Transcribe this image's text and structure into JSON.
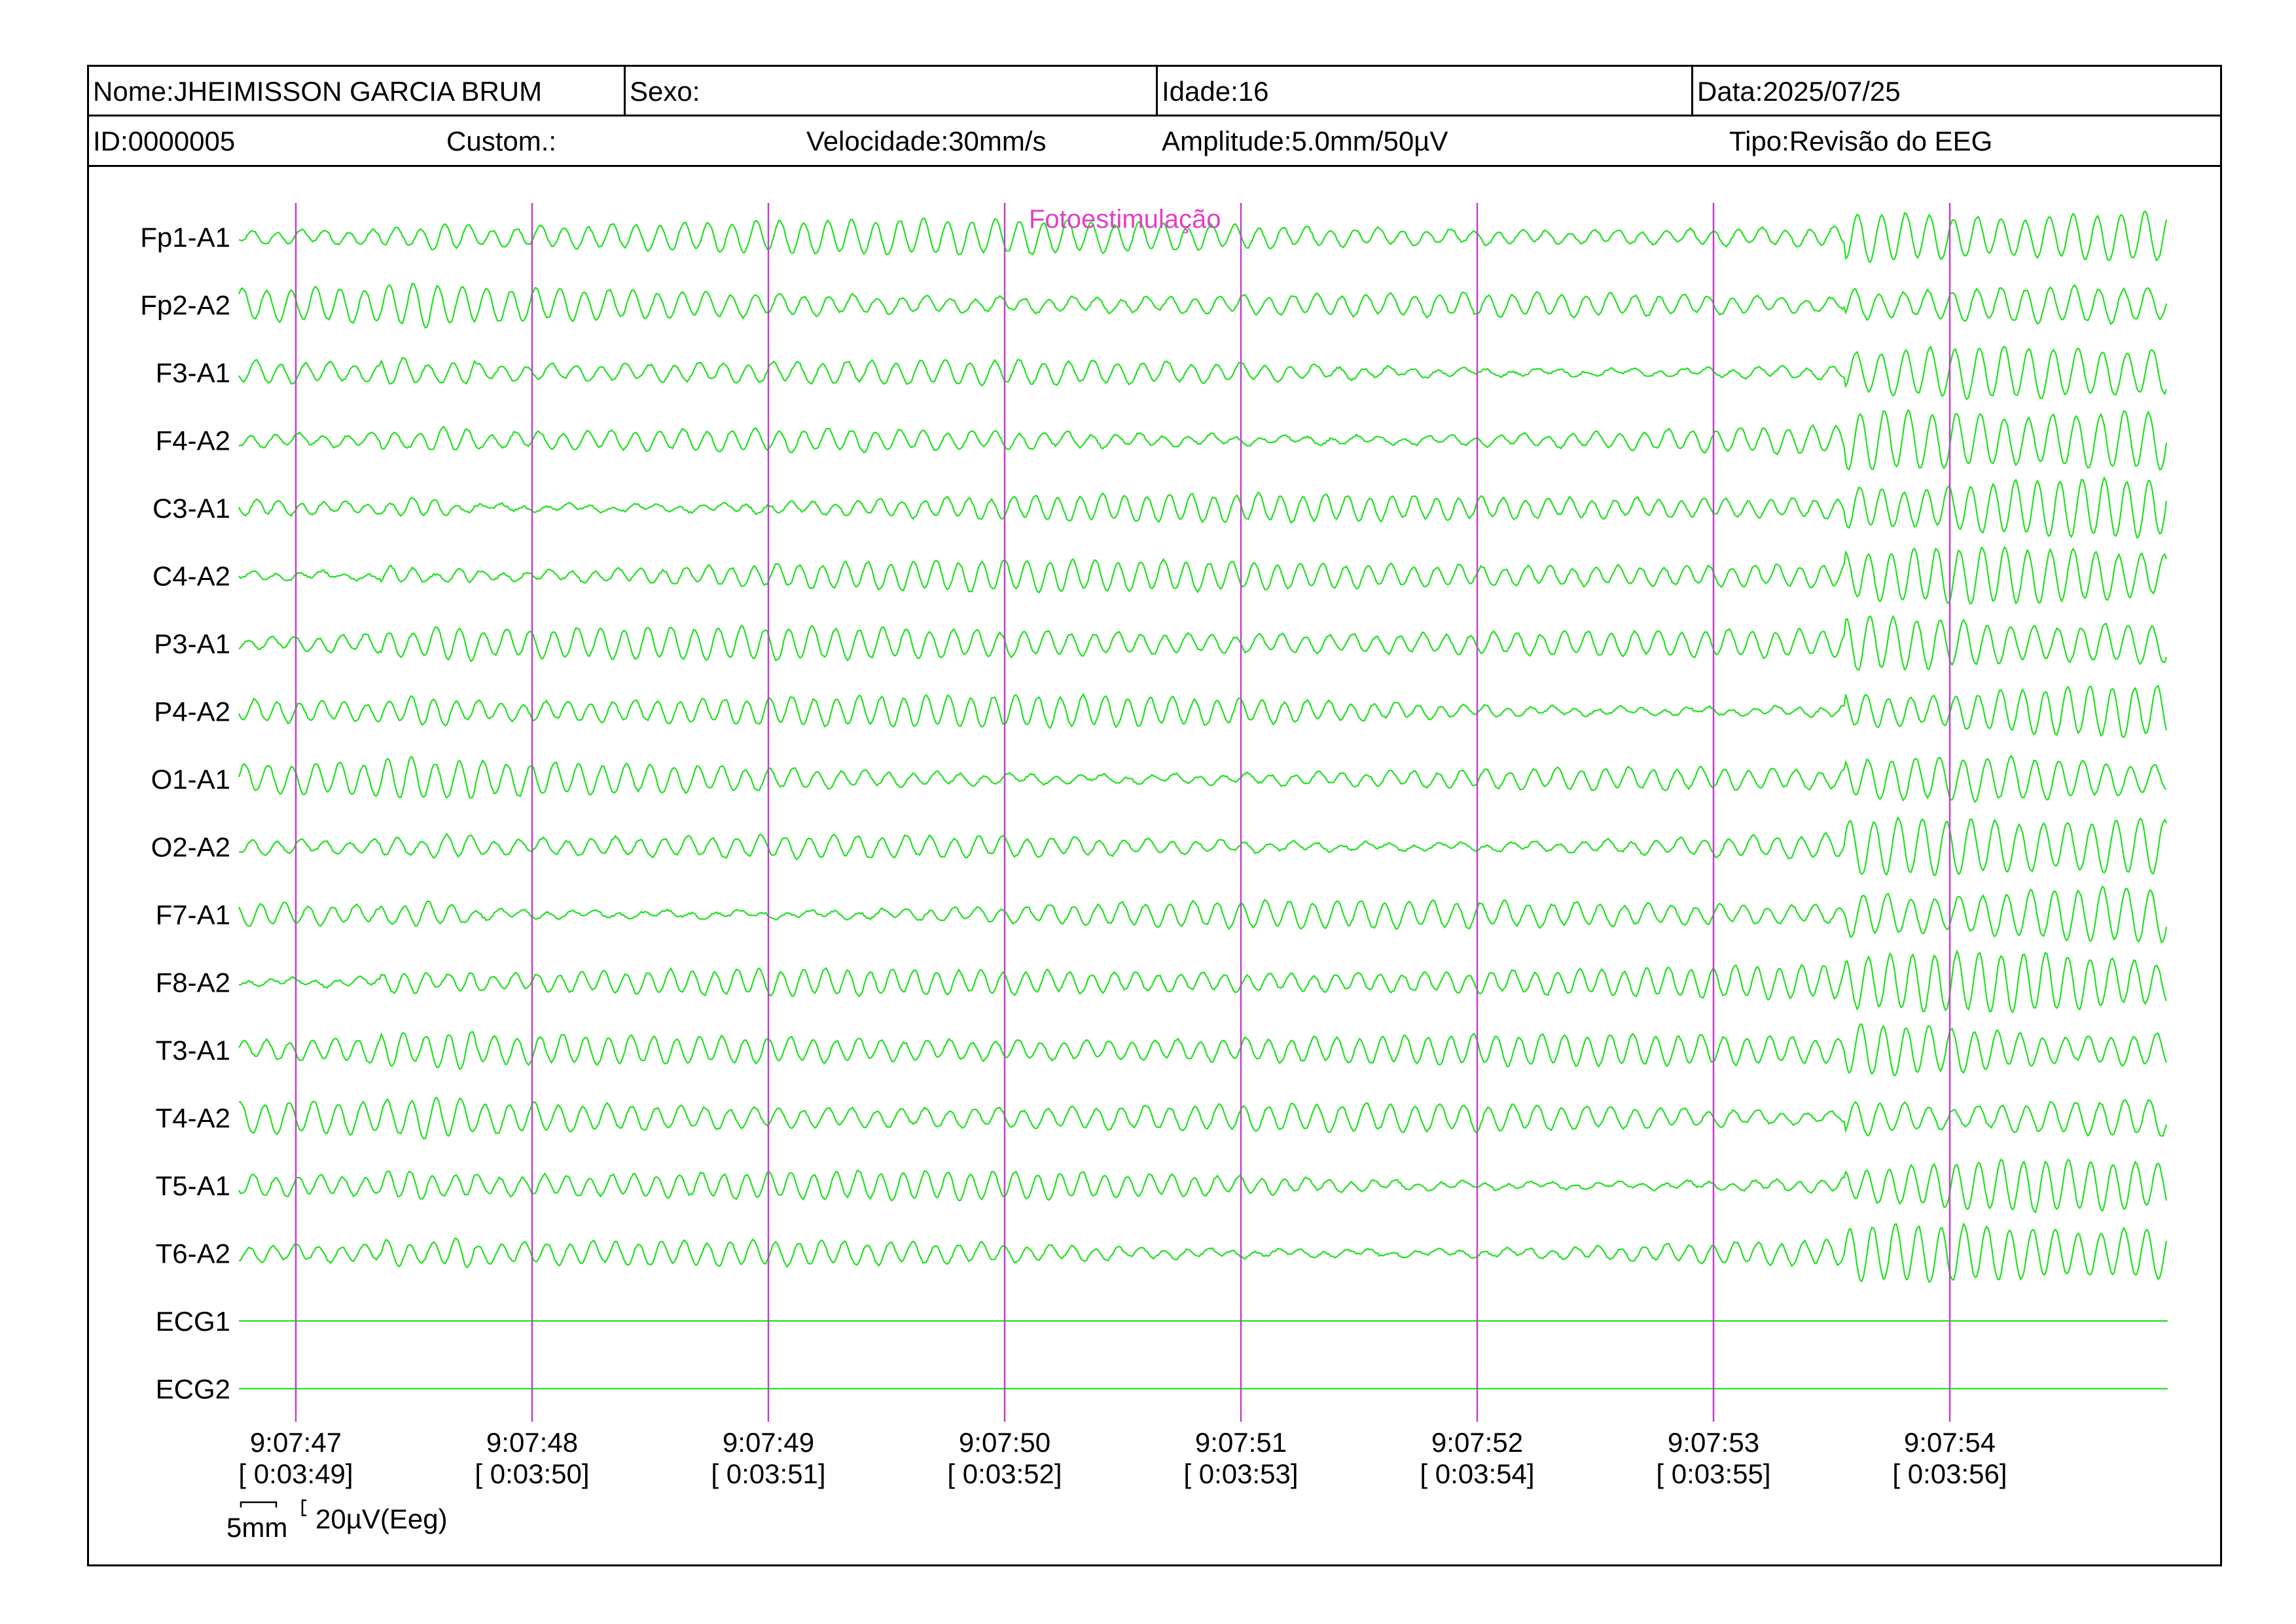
{
  "header": {
    "nome": "Nome:JHEIMISSON GARCIA BRUM",
    "sexo": "Sexo:",
    "idade": "Idade:16",
    "data": "Data:2025/07/25",
    "id": "ID:0000005",
    "custom": "Custom.:",
    "velocidade": "Velocidade:30mm/s",
    "amplitude": "Amplitude:5.0mm/50µV",
    "tipo": "Tipo:Revisão do EEG"
  },
  "colors": {
    "trace": "#22e022",
    "marker": "#c040c8",
    "annotation": "#e040c8",
    "border": "#000000"
  },
  "chart_data": {
    "type": "line",
    "title": "",
    "annotation": "Fotoestimulação",
    "channels": [
      "Fp1-A1",
      "Fp2-A2",
      "F3-A1",
      "F4-A2",
      "C3-A1",
      "C4-A2",
      "P3-A1",
      "P4-A2",
      "O1-A1",
      "O2-A2",
      "F7-A1",
      "F8-A2",
      "T3-A1",
      "T4-A2",
      "T5-A1",
      "T6-A2",
      "ECG1",
      "ECG2"
    ],
    "flat_channels": [
      "ECG1",
      "ECG2"
    ],
    "time_markers": [
      {
        "clock": "9:07:47",
        "elapsed": "[ 0:03:49]"
      },
      {
        "clock": "9:07:48",
        "elapsed": "[ 0:03:50]"
      },
      {
        "clock": "9:07:49",
        "elapsed": "[ 0:03:51]"
      },
      {
        "clock": "9:07:50",
        "elapsed": "[ 0:03:52]"
      },
      {
        "clock": "9:07:51",
        "elapsed": "[ 0:03:53]"
      },
      {
        "clock": "9:07:52",
        "elapsed": "[ 0:03:54]"
      },
      {
        "clock": "9:07:53",
        "elapsed": "[ 0:03:55]"
      },
      {
        "clock": "9:07:54",
        "elapsed": "[ 0:03:56]"
      }
    ],
    "seconds_shown": 8.2,
    "dominant_frequency_hz": 10,
    "calibration": {
      "time": "5mm",
      "amplitude": "20µV(Eeg)"
    }
  }
}
